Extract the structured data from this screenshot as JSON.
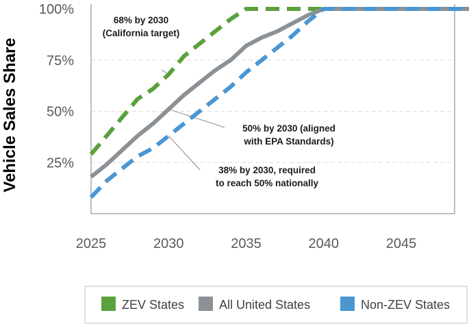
{
  "chart_data": {
    "type": "line",
    "title": "",
    "xlabel": "",
    "ylabel": "Vehicle Sales Share",
    "xlim": [
      2025,
      2050
    ],
    "ylim": [
      0,
      100
    ],
    "x_ticks": [
      2025,
      2030,
      2035,
      2040,
      2045
    ],
    "x_tick_labels": [
      "2025",
      "2030",
      "2035",
      "2040",
      "2045"
    ],
    "y_ticks": [
      25,
      50,
      75,
      100
    ],
    "y_tick_labels": [
      "25%",
      "50%",
      "75%",
      "100%"
    ],
    "grid": "horizontal dashed",
    "series": [
      {
        "name": "ZEV States",
        "color": "#5aa13c",
        "style": "dashed",
        "x": [
          2025,
          2026,
          2027,
          2028,
          2029,
          2030,
          2031,
          2032,
          2033,
          2034,
          2035,
          2036,
          2037,
          2038,
          2039,
          2040,
          2045,
          2050
        ],
        "values": [
          29,
          38,
          47,
          56,
          61,
          68,
          77,
          83,
          89,
          95,
          100,
          100,
          100,
          100,
          100,
          100,
          100,
          100
        ]
      },
      {
        "name": "All United States",
        "color": "#8c9196",
        "style": "solid",
        "x": [
          2025,
          2026,
          2027,
          2028,
          2029,
          2030,
          2031,
          2032,
          2033,
          2034,
          2035,
          2036,
          2037,
          2038,
          2039,
          2040,
          2045,
          2050
        ],
        "values": [
          18,
          24,
          31,
          38,
          44,
          51,
          58,
          64,
          70,
          75,
          82,
          86,
          89,
          93,
          97,
          100,
          100,
          100
        ]
      },
      {
        "name": "Non-ZEV States",
        "color": "#4a96d2",
        "style": "dashed",
        "x": [
          2025,
          2026,
          2027,
          2028,
          2029,
          2030,
          2031,
          2032,
          2033,
          2034,
          2035,
          2036,
          2037,
          2038,
          2039,
          2040,
          2045,
          2050
        ],
        "values": [
          8,
          16,
          22,
          28,
          32,
          38,
          44,
          50,
          56,
          62,
          69,
          75,
          81,
          87,
          94,
          100,
          100,
          100
        ]
      }
    ],
    "annotations": [
      {
        "lines": [
          "68% by 2030",
          "(California target)"
        ],
        "points_to": {
          "x": 2030,
          "y": 68
        }
      },
      {
        "lines": [
          "50% by 2030 (aligned",
          "with EPA Standards)"
        ],
        "points_to": {
          "x": 2030,
          "y": 51
        }
      },
      {
        "lines": [
          "38% by 2030, required",
          "to reach 50% nationally"
        ],
        "points_to": {
          "x": 2030,
          "y": 38
        }
      }
    ],
    "legend": {
      "placement": "bottom",
      "entries": [
        "ZEV States",
        "All United States",
        "Non-ZEV States"
      ]
    }
  }
}
